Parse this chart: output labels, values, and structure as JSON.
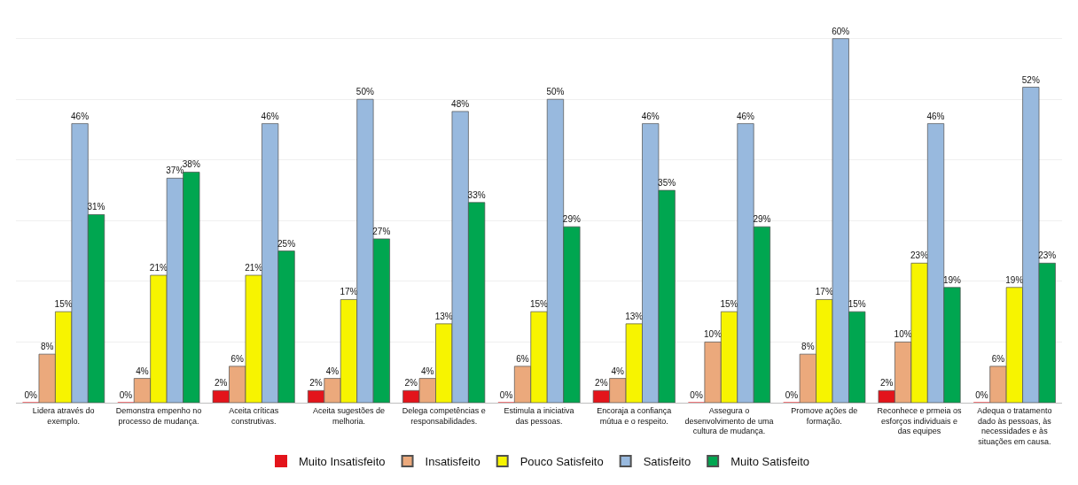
{
  "chart_data": {
    "type": "bar",
    "categories": [
      "Lidera através do exemplo.",
      "Demonstra empenho no processo de mudança.",
      "Aceita críticas construtivas.",
      "Aceita sugestões de melhoria.",
      "Delega competências e responsabilidades.",
      "Estimula a iniciativa das pessoas.",
      "Encoraja a confiança mútua e o respeito.",
      "Assegura o desenvolvimento de uma cultura de mudança.",
      "Promove ações de formação.",
      "Reconhece e prmeia os esforços individuais e das equipes",
      "Adequa o tratamento dado às pessoas, às necessidades e às situações em causa."
    ],
    "series": [
      {
        "name": "Muito Insatisfeito",
        "color": "#e3141b",
        "values": [
          0,
          0,
          2,
          2,
          2,
          0,
          2,
          0,
          0,
          2,
          0
        ],
        "value_labels": [
          "0%",
          "0%",
          "2%",
          "2%",
          "2%",
          "0%",
          "2%",
          "0%",
          "0%",
          "2%",
          "0%"
        ]
      },
      {
        "name": "Insatisfeito",
        "color": "#eba97c",
        "values": [
          8,
          4,
          6,
          4,
          4,
          6,
          4,
          10,
          8,
          10,
          6
        ],
        "value_labels": [
          "8%",
          "4%",
          "6%",
          "4%",
          "4%",
          "6%",
          "4%",
          "10%",
          "8%",
          "10%",
          "6%"
        ]
      },
      {
        "name": "Pouco Satisfeito",
        "color": "#f7f400",
        "values": [
          15,
          21,
          21,
          17,
          13,
          15,
          13,
          15,
          17,
          23,
          19
        ],
        "value_labels": [
          "15%",
          "21%",
          "21%",
          "17%",
          "13%",
          "15%",
          "13%",
          "15%",
          "17%",
          "23%",
          "19%"
        ]
      },
      {
        "name": "Satisfeito",
        "color": "#98b9de",
        "values": [
          46,
          37,
          46,
          50,
          48,
          50,
          46,
          46,
          60,
          46,
          52
        ],
        "value_labels": [
          "46%",
          "37%",
          "46%",
          "50%",
          "48%",
          "50%",
          "46%",
          "46%",
          "60%",
          "46%",
          "52%"
        ]
      },
      {
        "name": "Muito Satisfeito",
        "color": "#00a650",
        "values": [
          31,
          38,
          25,
          27,
          33,
          29,
          35,
          29,
          15,
          19,
          23
        ],
        "value_labels": [
          "31%",
          "38%",
          "25%",
          "27%",
          "33%",
          "29%",
          "35%",
          "29%",
          "15%",
          "19%",
          "23%"
        ]
      }
    ],
    "yticks": [
      {
        "value": 0,
        "label": null
      },
      {
        "value": 10,
        "label": null
      },
      {
        "value": 20,
        "label": null
      },
      {
        "value": 30,
        "label": null
      },
      {
        "value": 40,
        "label": null
      },
      {
        "value": 50,
        "label": null
      },
      {
        "value": 60,
        "label": null
      }
    ],
    "grid": "y",
    "legend": "bottom",
    "tick_labels": "x"
  }
}
